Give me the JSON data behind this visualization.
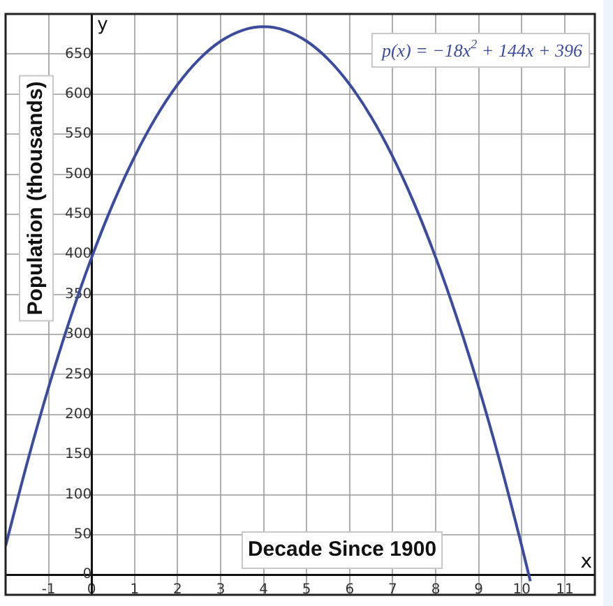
{
  "chart_data": {
    "type": "line",
    "xlabel": "Decade Since 1900",
    "ylabel": "Population (thousands)",
    "annotations": [
      "p(x) = −18x$^{2}$ + 144x + 396",
      "x",
      "y"
    ],
    "series": [
      {
        "color": "#3d4b9e",
        "x": [
          -2,
          -1.5,
          -1,
          -0.5,
          0,
          0.5,
          1,
          1.5,
          2,
          2.5,
          3,
          3.5,
          4,
          4.5,
          5,
          5.5,
          6,
          6.5,
          7,
          7.5,
          8,
          8.5,
          9,
          9.5,
          10,
          10.2
        ],
        "values": [
          36,
          139.5,
          234,
          319.5,
          396,
          463.5,
          522,
          571.5,
          612,
          643.5,
          666,
          679.5,
          684,
          679.5,
          666,
          643.5,
          612,
          571.5,
          522,
          463.5,
          396,
          319.5,
          234,
          139.5,
          36,
          -8
        ]
      }
    ],
    "xlim": [
      -2,
      11.7
    ],
    "ylim": [
      -25,
      700
    ],
    "xticks": [
      -1,
      0,
      1,
      2,
      3,
      4,
      5,
      6,
      7,
      8,
      9,
      10,
      11
    ],
    "yticks": [
      0,
      50,
      100,
      150,
      200,
      250,
      300,
      350,
      400,
      450,
      500,
      550,
      600,
      650
    ],
    "grid": true,
    "legend": false,
    "marker": "none",
    "line_style": "solid"
  }
}
